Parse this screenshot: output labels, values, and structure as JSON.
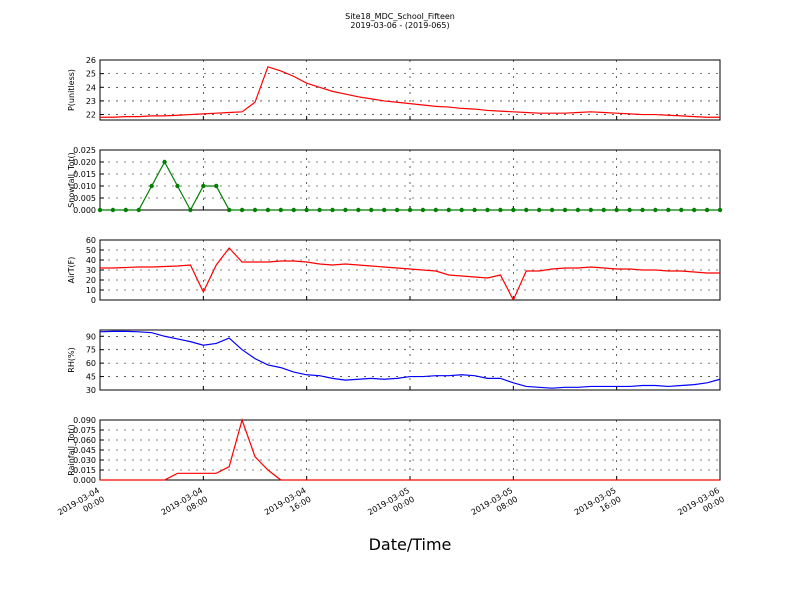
{
  "title": "Site18_MDC_School_Fifteen",
  "subtitle": "2019-03-06 - (2019-065)",
  "x_label": "Date/Time",
  "x": [
    "2019-03-04 00:00",
    "2019-03-04 01:00",
    "2019-03-04 02:00",
    "2019-03-04 03:00",
    "2019-03-04 04:00",
    "2019-03-04 05:00",
    "2019-03-04 06:00",
    "2019-03-04 07:00",
    "2019-03-04 08:00",
    "2019-03-04 09:00",
    "2019-03-04 10:00",
    "2019-03-04 11:00",
    "2019-03-04 12:00",
    "2019-03-04 13:00",
    "2019-03-04 14:00",
    "2019-03-04 15:00",
    "2019-03-04 16:00",
    "2019-03-04 17:00",
    "2019-03-04 18:00",
    "2019-03-04 19:00",
    "2019-03-04 20:00",
    "2019-03-04 21:00",
    "2019-03-04 22:00",
    "2019-03-04 23:00",
    "2019-03-05 00:00",
    "2019-03-05 01:00",
    "2019-03-05 02:00",
    "2019-03-05 03:00",
    "2019-03-05 04:00",
    "2019-03-05 05:00",
    "2019-03-05 06:00",
    "2019-03-05 07:00",
    "2019-03-05 08:00",
    "2019-03-05 09:00",
    "2019-03-05 10:00",
    "2019-03-05 11:00",
    "2019-03-05 12:00",
    "2019-03-05 13:00",
    "2019-03-05 14:00",
    "2019-03-05 15:00",
    "2019-03-05 16:00",
    "2019-03-05 17:00",
    "2019-03-05 18:00",
    "2019-03-05 19:00",
    "2019-03-05 20:00",
    "2019-03-05 21:00",
    "2019-03-05 22:00",
    "2019-03-05 23:00",
    "2019-03-06 00:00"
  ],
  "xlim": [
    "2019-03-04 00:00",
    "2019-03-06 00:00"
  ],
  "xticks": [
    "2019-03-04 00:00",
    "2019-03-04 08:00",
    "2019-03-04 16:00",
    "2019-03-05 00:00",
    "2019-03-05 08:00",
    "2019-03-05 16:00",
    "2019-03-06 00:00"
  ],
  "chart_data": [
    {
      "type": "line",
      "y_label": "P(unitless)",
      "color": "#ff0000",
      "grid": true,
      "ylim": [
        21.6,
        26
      ],
      "yticks": [
        22,
        23,
        24,
        25,
        26
      ],
      "values": [
        21.8,
        21.8,
        21.85,
        21.85,
        21.9,
        21.9,
        21.95,
        22,
        22.05,
        22.1,
        22.15,
        22.2,
        22.9,
        25.5,
        25.2,
        24.8,
        24.3,
        24,
        23.7,
        23.5,
        23.3,
        23.15,
        23,
        22.9,
        22.8,
        22.7,
        22.6,
        22.55,
        22.45,
        22.4,
        22.3,
        22.25,
        22.2,
        22.15,
        22.1,
        22.1,
        22.1,
        22.15,
        22.2,
        22.15,
        22.1,
        22.05,
        22,
        22,
        21.95,
        21.9,
        21.85,
        21.8,
        21.8
      ]
    },
    {
      "type": "line",
      "y_label": "Snowfall_Tot()",
      "color": "#007f00",
      "grid": true,
      "marker": true,
      "ylim": [
        0,
        0.025
      ],
      "yticks": [
        {
          "value": 0,
          "label": "0.000"
        },
        {
          "value": 0.005,
          "label": "0.005"
        },
        {
          "value": 0.01,
          "label": "0.010"
        },
        {
          "value": 0.015,
          "label": "0.015"
        },
        {
          "value": 0.02,
          "label": "0.020"
        },
        {
          "value": 0.025,
          "label": "0.025"
        }
      ],
      "values": [
        0,
        0,
        0,
        0,
        0.01,
        0.02,
        0.01,
        0,
        0.01,
        0.01,
        0,
        0,
        0,
        0,
        0,
        0,
        0,
        0,
        0,
        0,
        0,
        0,
        0,
        0,
        0,
        0,
        0,
        0,
        0,
        0,
        0,
        0,
        0,
        0,
        0,
        0,
        0,
        0,
        0,
        0,
        0,
        0,
        0,
        0,
        0,
        0,
        0,
        0,
        0
      ]
    },
    {
      "type": "line",
      "y_label": "AirT(F)",
      "color": "#ff0000",
      "grid": true,
      "ylim": [
        0,
        60
      ],
      "yticks": [
        0,
        10,
        20,
        30,
        40,
        50,
        60
      ],
      "values": [
        32,
        32,
        32.5,
        33,
        33,
        33.5,
        34,
        35,
        8,
        35,
        52,
        38,
        38,
        38,
        39,
        39,
        38,
        36,
        35,
        36,
        35,
        34,
        33,
        32,
        31,
        30,
        29,
        25,
        24,
        23,
        22,
        25,
        0,
        29,
        29,
        31,
        32,
        32,
        33,
        32,
        31,
        31,
        30,
        30,
        29,
        29,
        28,
        27,
        27
      ]
    },
    {
      "type": "line",
      "y_label": "RH(%)",
      "color": "#0000ff",
      "grid": true,
      "ylim": [
        30,
        97
      ],
      "yticks": [
        30,
        45,
        60,
        75,
        90
      ],
      "values": [
        95,
        95.5,
        95.5,
        95,
        94,
        90,
        87,
        84,
        80,
        82,
        88,
        75,
        65,
        58,
        55,
        50,
        47,
        46,
        43,
        41,
        42,
        43,
        42,
        43,
        45,
        45,
        46,
        46,
        47,
        46,
        43,
        43,
        38,
        34,
        33,
        32,
        33,
        33,
        34,
        34,
        34,
        34,
        35,
        35,
        34,
        35,
        36,
        38,
        42
      ]
    },
    {
      "type": "line",
      "y_label": "Rainfall_Tot()",
      "color": "#ff0000",
      "grid": true,
      "ylim": [
        0,
        0.09
      ],
      "yticks": [
        {
          "value": 0,
          "label": "0.000"
        },
        {
          "value": 0.015,
          "label": "0.015"
        },
        {
          "value": 0.03,
          "label": "0.030"
        },
        {
          "value": 0.045,
          "label": "0.045"
        },
        {
          "value": 0.06,
          "label": "0.060"
        },
        {
          "value": 0.075,
          "label": "0.075"
        },
        {
          "value": 0.09,
          "label": "0.090"
        }
      ],
      "values": [
        0,
        0,
        0,
        0,
        0,
        0,
        0.01,
        0.01,
        0.01,
        0.01,
        0.02,
        0.09,
        0.035,
        0.015,
        0,
        0,
        0,
        0,
        0,
        0,
        0,
        0,
        0,
        0,
        0,
        0,
        0,
        0,
        0,
        0,
        0,
        0,
        0,
        0,
        0,
        0,
        0,
        0,
        0,
        0,
        0,
        0,
        0,
        0,
        0,
        0,
        0,
        0,
        0
      ]
    }
  ]
}
